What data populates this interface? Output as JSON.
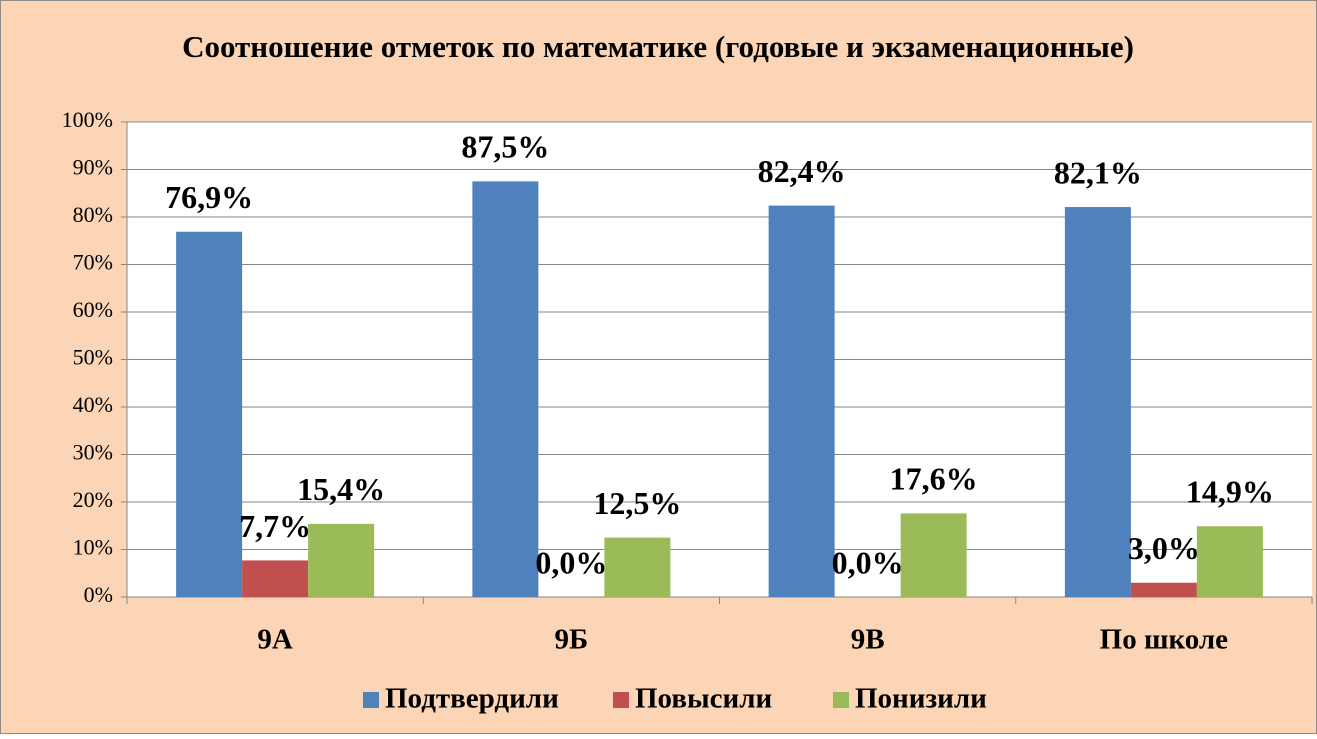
{
  "chart_data": {
    "type": "bar",
    "title": "Соотношение отметок по математике (годовые и экзаменационные)",
    "categories": [
      "9А",
      "9Б",
      "9В",
      "По школе"
    ],
    "series": [
      {
        "name": "Подтвердили",
        "color": "#4f81bd",
        "values": [
          76.9,
          87.5,
          82.4,
          82.1
        ],
        "value_labels": [
          "76,9%",
          "87,5%",
          "82,4%",
          "82,1%"
        ]
      },
      {
        "name": "Повысили",
        "color": "#c0504d",
        "values": [
          7.7,
          0,
          0,
          3.0
        ],
        "value_labels": [
          "7,7%",
          "0,0%",
          "0,0%",
          "3,0%"
        ]
      },
      {
        "name": "Понизили",
        "color": "#9bbb59",
        "values": [
          15.4,
          12.5,
          17.6,
          14.9
        ],
        "value_labels": [
          "15,4%",
          "12,5%",
          "17,6%",
          "14,9%"
        ]
      }
    ],
    "ylim": [
      0,
      100
    ],
    "yticks": [
      {
        "value": 0,
        "label": "0%"
      },
      {
        "value": 10,
        "label": "10%"
      },
      {
        "value": 20,
        "label": "20%"
      },
      {
        "value": 30,
        "label": "30%"
      },
      {
        "value": 40,
        "label": "40%"
      },
      {
        "value": 50,
        "label": "50%"
      },
      {
        "value": 60,
        "label": "60%"
      },
      {
        "value": 70,
        "label": "70%"
      },
      {
        "value": 80,
        "label": "80%"
      },
      {
        "value": 90,
        "label": "90%"
      },
      {
        "value": 100,
        "label": "100%"
      }
    ],
    "grid": true,
    "legend": "bottom"
  }
}
